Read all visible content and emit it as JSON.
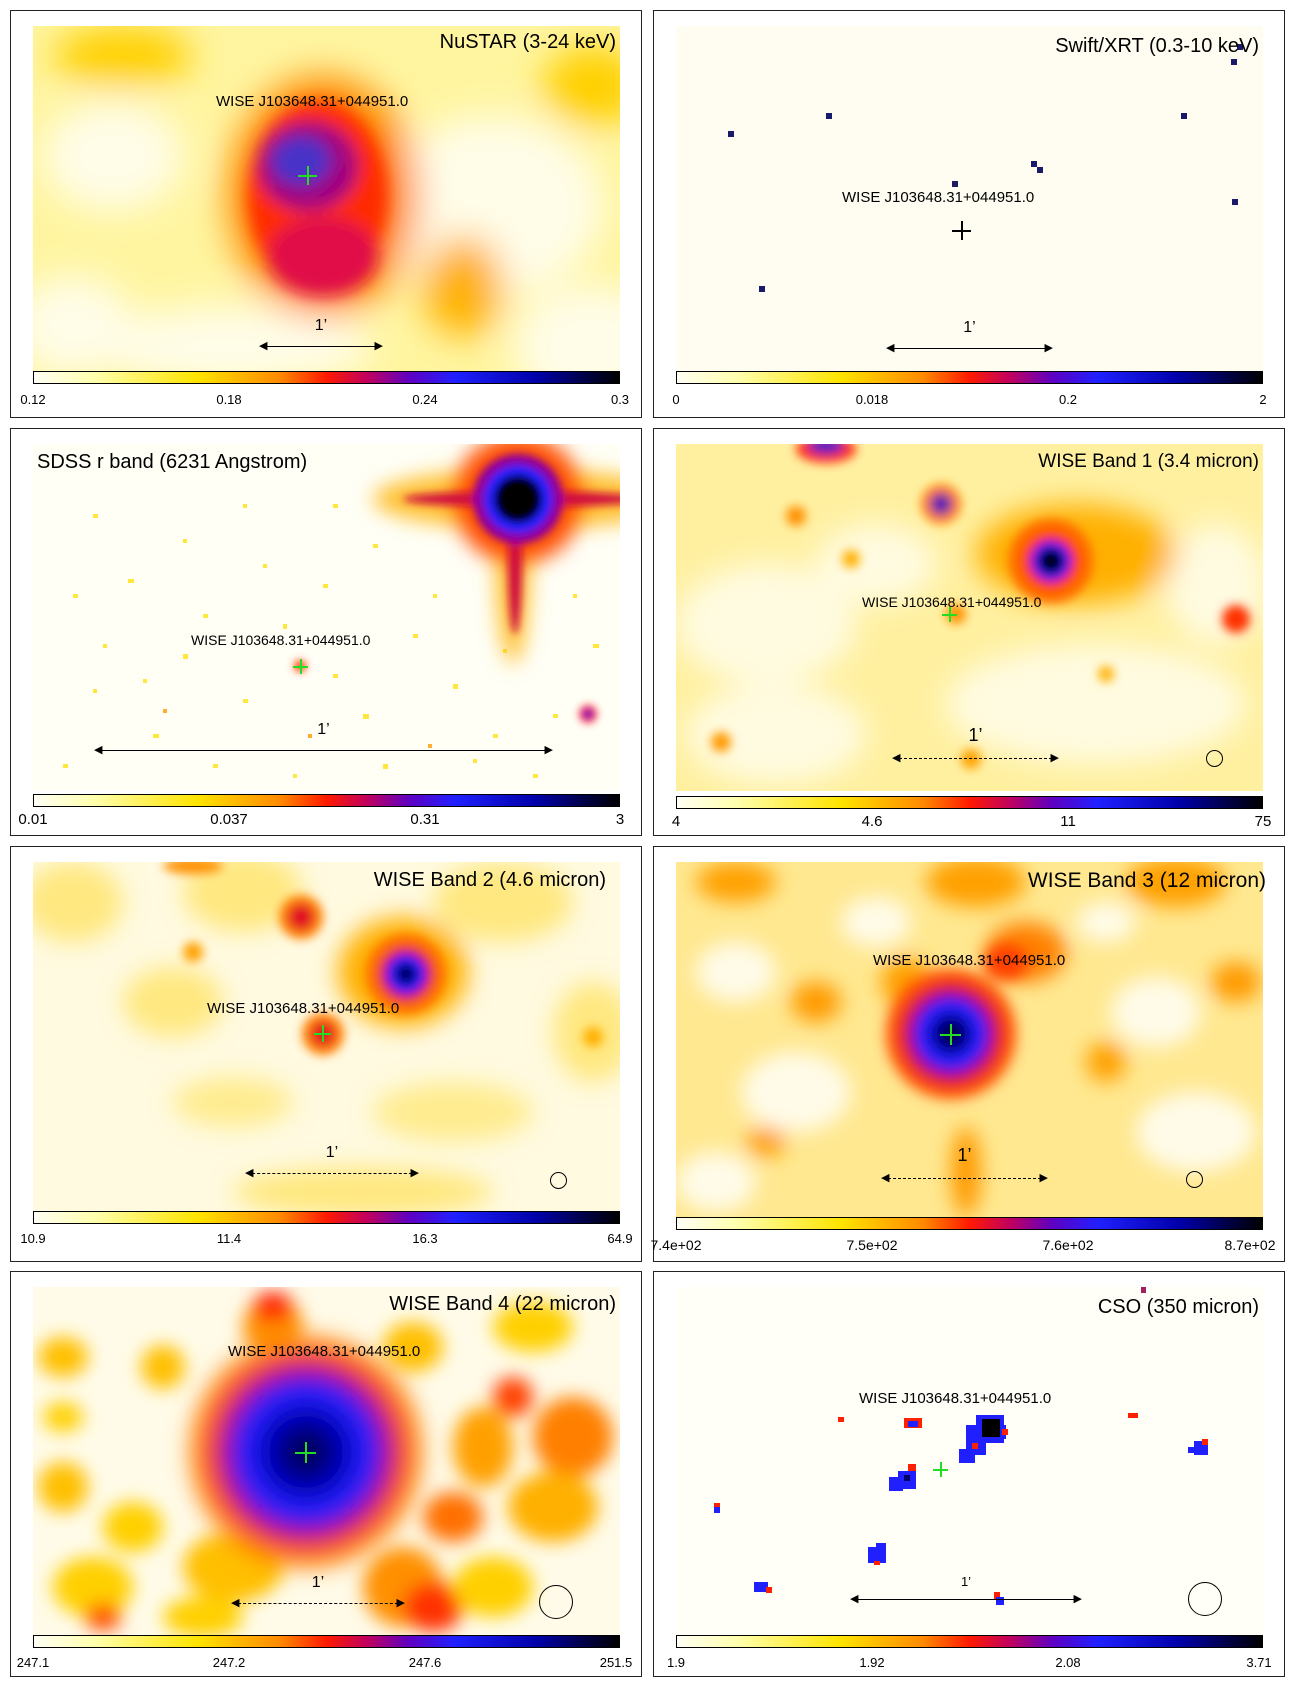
{
  "panels": [
    {
      "title": "NuSTAR (3-24 keV)",
      "source": "WISE J103648.31+044951.0",
      "scale": "1’",
      "ticks": [
        "0.12",
        "0.18",
        "0.24",
        "0.3"
      ]
    },
    {
      "title": "Swift/XRT (0.3-10 keV)",
      "source": "WISE J103648.31+044951.0",
      "scale": "1’",
      "ticks": [
        "0",
        "0.018",
        "0.2",
        "2"
      ]
    },
    {
      "title": "SDSS r band (6231 Angstrom)",
      "source": "WISE J103648.31+044951.0",
      "scale": "1’",
      "ticks": [
        "0.01",
        "0.037",
        "0.31",
        "3"
      ]
    },
    {
      "title": "WISE Band 1 (3.4 micron)",
      "source": "WISE J103648.31+044951.0",
      "scale": "1’",
      "ticks": [
        "4",
        "4.6",
        "11",
        "75"
      ]
    },
    {
      "title": "WISE Band 2 (4.6 micron)",
      "source": "WISE J103648.31+044951.0",
      "scale": "1’",
      "ticks": [
        "10.9",
        "11.4",
        "16.3",
        "64.9"
      ]
    },
    {
      "title": "WISE Band 3 (12 micron)",
      "source": "WISE J103648.31+044951.0",
      "scale": "1’",
      "ticks": [
        "7.4e+02",
        "7.5e+02",
        "7.6e+02",
        "8.7e+02"
      ]
    },
    {
      "title": "WISE Band 4 (22 micron)",
      "source": "WISE J103648.31+044951.0",
      "scale": "1’",
      "ticks": [
        "247.1",
        "247.2",
        "247.6",
        "251.5"
      ]
    },
    {
      "title": "CSO (350 micron)",
      "source": "WISE J103648.31+044951.0",
      "scale": "1’",
      "ticks": [
        "1.9",
        "1.92",
        "2.08",
        "3.71"
      ]
    }
  ],
  "colormap": [
    "#fffff4",
    "#ffffb0",
    "#ffe400",
    "#ff8a00",
    "#ff1a00",
    "#c00060",
    "#6000c0",
    "#2020ff",
    "#0000a8",
    "#000000"
  ],
  "marker_color": "#22dd22"
}
